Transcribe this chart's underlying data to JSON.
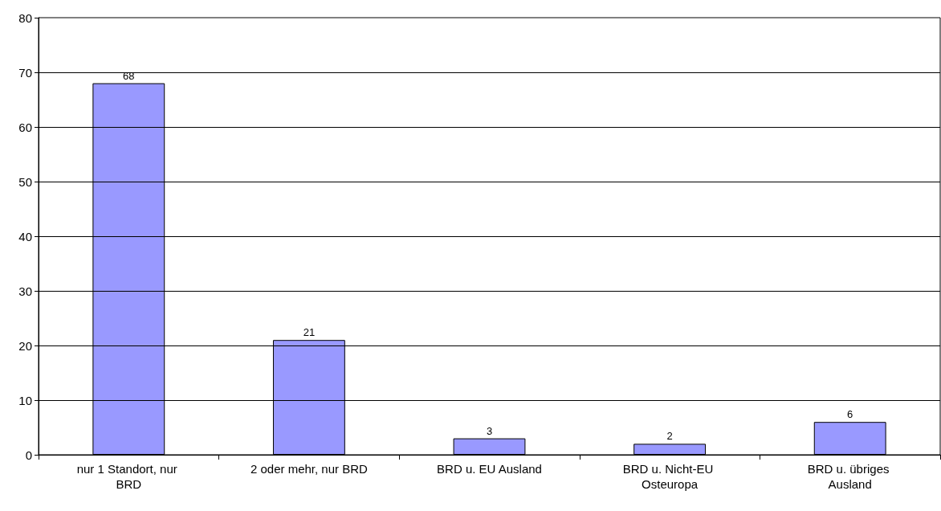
{
  "chart_data": {
    "type": "bar",
    "categories": [
      "nur 1 Standort, nur BRD",
      "2 oder mehr, nur BRD",
      "BRD u. EU Ausland",
      "BRD u. Nicht-EU Osteuropa",
      "BRD u. übriges Ausland"
    ],
    "values": [
      68,
      21,
      3,
      2,
      6
    ],
    "color": "#9999ff",
    "ylim": [
      0,
      80
    ],
    "yticks": [
      0,
      10,
      20,
      30,
      40,
      50,
      60,
      70,
      80
    ],
    "grid": "y",
    "data_labels": true
  }
}
